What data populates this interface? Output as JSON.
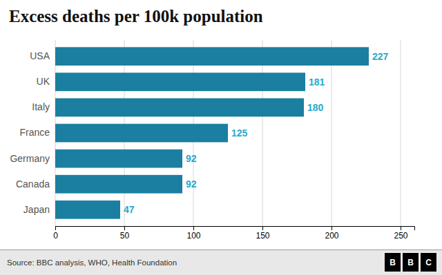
{
  "chart_data": {
    "type": "bar",
    "orientation": "horizontal",
    "title": "Excess deaths per 100k population",
    "categories": [
      "Japan",
      "Canada",
      "Germany",
      "France",
      "Italy",
      "UK",
      "USA"
    ],
    "values": [
      47,
      92,
      92,
      125,
      180,
      181,
      227
    ],
    "color": "#1a7fa0",
    "xlim": [
      0,
      260
    ],
    "xticks": [
      0,
      50,
      100,
      150,
      200,
      250
    ],
    "grid": true,
    "data_labels": true,
    "source": "Source: BBC analysis, WHO, Health Foundation",
    "logo": [
      "B",
      "B",
      "C"
    ]
  }
}
